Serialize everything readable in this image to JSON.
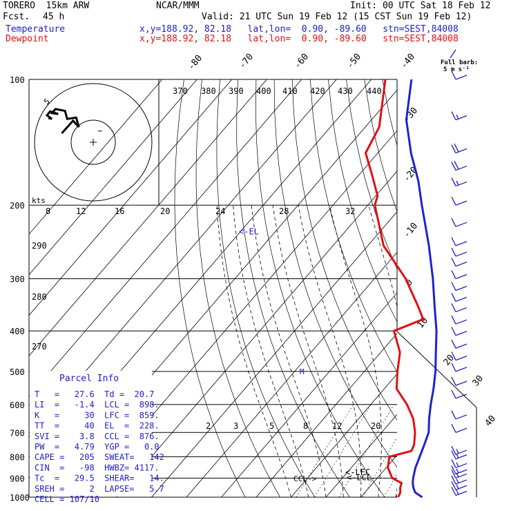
{
  "header": {
    "model": "TORERO  15km ARW",
    "org": "NCAR/MMM",
    "init": "Init: 00 UTC Sat 18 Feb 12",
    "fcst_label": "Fcst.",
    "fcst_value": "45 h",
    "valid": "Valid: 21 UTC Sun 19 Feb 12 (15 CST Sun 19 Feb 12)",
    "temp_label": "Temperature",
    "dew_label": "Dewpoint",
    "loc_line": "x,y=188.92, 82.18   lat,lon=  0.90, -89.60   stn=SEST,84008",
    "full_barb_line1": "Full barb:",
    "full_barb_line2": "5 m s⁻¹"
  },
  "colors": {
    "temperature": "#2020d0",
    "dewpoint": "#e01010",
    "wind": "#2020c8",
    "axes": "#000000"
  },
  "chart_data": {
    "type": "line",
    "title": "",
    "y_axis": "pressure (hPa), log scale",
    "pressure_ticks": [
      100,
      200,
      300,
      400,
      500,
      600,
      700,
      800,
      900,
      1000
    ],
    "isotherm_labels": [
      "-80",
      "-70",
      "-60",
      "-50",
      "-40",
      "-30",
      "-20",
      "-10",
      "0",
      "10",
      "20",
      "30",
      "40"
    ],
    "theta_labels": [
      "370",
      "380",
      "390",
      "400",
      "410",
      "420",
      "430",
      "440"
    ],
    "mixing_ratio_labels": [
      "2",
      "3",
      "5",
      "8",
      "12",
      "20"
    ],
    "hodograph_speed_labels": [
      "8",
      "12",
      "16",
      "20",
      "24",
      "28",
      "32"
    ],
    "hodograph_ring_label": "5",
    "hodograph_units": "kts",
    "theta_left_labels": [
      "290",
      "280",
      "270"
    ],
    "series": [
      {
        "name": "Temperature",
        "points": [
          [
            1000,
            27.6
          ],
          [
            975,
            24.5
          ],
          [
            950,
            22.8
          ],
          [
            925,
            21.4
          ],
          [
            900,
            20.3
          ],
          [
            850,
            18.4
          ],
          [
            800,
            16.9
          ],
          [
            750,
            15.3
          ],
          [
            700,
            13.5
          ],
          [
            650,
            10.3
          ],
          [
            600,
            7.2
          ],
          [
            550,
            4.1
          ],
          [
            500,
            0.4
          ],
          [
            450,
            -4.2
          ],
          [
            400,
            -9.3
          ],
          [
            350,
            -15.8
          ],
          [
            300,
            -23.2
          ],
          [
            250,
            -32.5
          ],
          [
            200,
            -44.5
          ],
          [
            175,
            -51.5
          ],
          [
            150,
            -60.5
          ],
          [
            125,
            -70.0
          ],
          [
            100,
            -78.5
          ]
        ]
      },
      {
        "name": "Dewpoint",
        "points": [
          [
            1000,
            20.7
          ],
          [
            975,
            20.2
          ],
          [
            950,
            19.0
          ],
          [
            925,
            18.2
          ],
          [
            900,
            14.3
          ],
          [
            850,
            10.5
          ],
          [
            800,
            8.2
          ],
          [
            775,
            13.1
          ],
          [
            750,
            12.4
          ],
          [
            700,
            9.6
          ],
          [
            650,
            5.8
          ],
          [
            600,
            0.4
          ],
          [
            550,
            -6.5
          ],
          [
            500,
            -10.5
          ],
          [
            450,
            -14.5
          ],
          [
            400,
            -21.5
          ],
          [
            375,
            -16.0
          ],
          [
            350,
            -20.5
          ],
          [
            300,
            -31.0
          ],
          [
            250,
            -45.5
          ],
          [
            200,
            -58.0
          ],
          [
            190,
            -59.5
          ],
          [
            170,
            -66.0
          ],
          [
            150,
            -73.5
          ],
          [
            130,
            -76.0
          ],
          [
            100,
            -86.0
          ]
        ]
      }
    ],
    "level_markers": [
      {
        "label": "<-EL",
        "pressure": 228
      },
      {
        "label": "<-LFC",
        "pressure": 859
      },
      {
        "label": "<-LCL",
        "pressure": 898
      },
      {
        "label": "CCL->",
        "pressure": 876
      },
      {
        "label": "M",
        "pressure": 500
      }
    ],
    "hodograph_uv_kts": [
      [
        -7,
        2
      ],
      [
        -4.5,
        4.8
      ],
      [
        -3.2,
        3.4
      ],
      [
        -3.8,
        5.5
      ],
      [
        -5.8,
        5.2
      ],
      [
        -6.3,
        7.0
      ],
      [
        -8.4,
        7.4
      ],
      [
        -9.2,
        6.5
      ],
      [
        -7.8,
        6.3
      ],
      [
        -9.6,
        6.9
      ],
      [
        -10.3,
        6.0
      ],
      [
        -9.2,
        5.2
      ],
      [
        -10.0,
        5.4
      ]
    ],
    "storm_motion_marker": [
      1.5,
      2.5
    ],
    "wind_barbs_kts": [
      {
        "p": 100,
        "spd": 10
      },
      {
        "p": 125,
        "spd": 15
      },
      {
        "p": 150,
        "spd": 20
      },
      {
        "p": 165,
        "spd": 20
      },
      {
        "p": 180,
        "spd": 15
      },
      {
        "p": 200,
        "spd": 10
      },
      {
        "p": 225,
        "spd": 10
      },
      {
        "p": 250,
        "spd": 10
      },
      {
        "p": 265,
        "spd": 10
      },
      {
        "p": 280,
        "spd": 10
      },
      {
        "p": 300,
        "spd": 10
      },
      {
        "p": 320,
        "spd": 10
      },
      {
        "p": 340,
        "spd": 10
      },
      {
        "p": 360,
        "spd": 10
      },
      {
        "p": 385,
        "spd": 10
      },
      {
        "p": 410,
        "spd": 10
      },
      {
        "p": 440,
        "spd": 10
      },
      {
        "p": 470,
        "spd": 10
      },
      {
        "p": 500,
        "spd": 10
      },
      {
        "p": 540,
        "spd": 10
      },
      {
        "p": 580,
        "spd": 10
      },
      {
        "p": 650,
        "spd": 10
      },
      {
        "p": 700,
        "spd": 10
      },
      {
        "p": 790,
        "spd": 15
      },
      {
        "p": 810,
        "spd": 15
      },
      {
        "p": 850,
        "spd": 15
      },
      {
        "p": 880,
        "spd": 15
      },
      {
        "p": 900,
        "spd": 15
      },
      {
        "p": 930,
        "spd": 15
      },
      {
        "p": 960,
        "spd": 15
      },
      {
        "p": 990,
        "spd": 15
      }
    ]
  },
  "parcel_info": {
    "title": "Parcel Info",
    "rows": [
      "T   =   27.6  Td =  20.7",
      "LI  =   -1.4  LCL =  898.",
      "K   =     30  LFC =  859.",
      "TT  =     40  EL  =  228.",
      "SVI =    3.8  CCL =  876.",
      "PW  =   4.79  YGP =   0.0",
      "CAPE =   205  SWEAT=   142",
      "CIN  =   -98  HWBZ= 4117.",
      "Tc  =   29.5  SHEAR=   14.",
      "SREH =     2  LAPSE=   5.7",
      "CELL = 107/10"
    ]
  }
}
